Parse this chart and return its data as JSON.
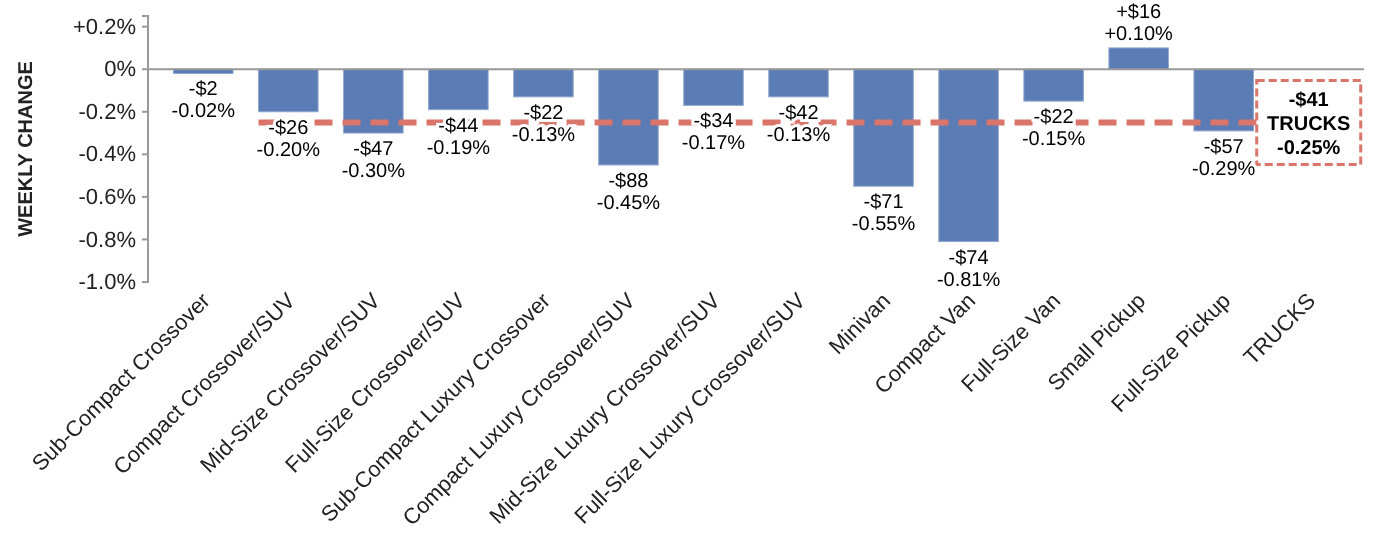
{
  "chart_data": {
    "type": "bar",
    "ylabel": "WEEKLY CHANGE",
    "categories": [
      "Sub-Compact Crossover",
      "Compact Crossover/SUV",
      "Mid-Size Crossover/SUV",
      "Full-Size Crossover/SUV",
      "Sub-Compact Luxury Crossover",
      "Compact Luxury Crossover/SUV",
      "Mid-Size Luxury Crossover/SUV",
      "Full-Size Luxury Crossover/SUV",
      "Minivan",
      "Compact Van",
      "Full-Size Van",
      "Small Pickup",
      "Full-Size Pickup",
      "TRUCKS"
    ],
    "values": [
      -0.02,
      -0.2,
      -0.3,
      -0.19,
      -0.13,
      -0.45,
      -0.17,
      -0.13,
      -0.55,
      -0.81,
      -0.15,
      0.1,
      -0.29,
      null
    ],
    "value_labels": [
      "-$2\n-0.02%",
      "-$26\n-0.20%",
      "-$47\n-0.30%",
      "-$44\n-0.19%",
      "-$22\n-0.13%",
      "-$88\n-0.45%",
      "-$34\n-0.17%",
      "-$42\n-0.13%",
      "-$71\n-0.55%",
      "-$74\n-0.81%",
      "-$22\n-0.15%",
      "+$16\n+0.10%",
      "-$57\n-0.29%",
      null
    ],
    "color": "#5b7cb4",
    "ylim": [
      -1.0,
      0.25
    ],
    "yticks": [
      {
        "value": 0.2,
        "label": "+0.2%"
      },
      {
        "value": 0,
        "label": "0%"
      },
      {
        "value": -0.2,
        "label": "-0.2%"
      },
      {
        "value": -0.4,
        "label": "-0.4%"
      },
      {
        "value": -0.6,
        "label": "-0.6%"
      },
      {
        "value": -0.8,
        "label": "-0.8%"
      },
      {
        "value": -1.0,
        "label": "-1.0%"
      }
    ],
    "ref_lines": [
      {
        "axis": "y",
        "value": -0.25,
        "label": "-$41\nTRUCKS\n-0.25%",
        "color": "#d9756b",
        "line_style": "dashed"
      }
    ]
  }
}
